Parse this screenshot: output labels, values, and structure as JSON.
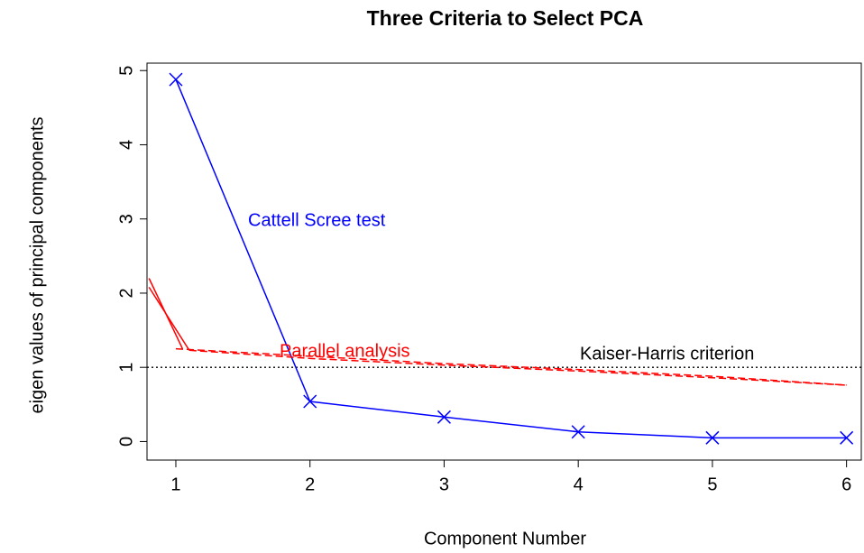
{
  "chart_data": {
    "type": "line",
    "title": "Three Criteria to Select PCA",
    "xlabel": "Component Number",
    "ylabel": "eigen values of principal components",
    "xlim": [
      0.785,
      6.11
    ],
    "ylim": [
      -0.25,
      5.1
    ],
    "xticks": [
      1,
      2,
      3,
      4,
      5,
      6
    ],
    "yticks": [
      0,
      1,
      2,
      3,
      4,
      5
    ],
    "series": [
      {
        "color": "#0000ff",
        "style": "solid",
        "marker": "x",
        "x": [
          1,
          2,
          3,
          4,
          5,
          6
        ],
        "values": [
          4.88,
          0.54,
          0.33,
          0.13,
          0.05,
          0.05
        ]
      },
      {
        "color": "#ff0000",
        "style": "dashed",
        "x": [
          1,
          2,
          3,
          4,
          5,
          6
        ],
        "values": [
          1.25,
          1.15,
          1.05,
          0.97,
          0.88,
          0.76
        ]
      },
      {
        "color": "#ff0000",
        "style": "dashed",
        "x": [
          1.1,
          2,
          3,
          4,
          5,
          6
        ],
        "values": [
          1.23,
          1.12,
          1.03,
          0.95,
          0.86,
          0.76
        ]
      },
      {
        "color": "#ff0000",
        "style": "solid",
        "x": [
          0.8,
          1.05
        ],
        "values": [
          2.2,
          1.25
        ]
      },
      {
        "color": "#ff0000",
        "style": "solid",
        "x": [
          0.8,
          1.1
        ],
        "values": [
          2.08,
          1.23
        ]
      }
    ],
    "hline": {
      "value": 1,
      "color": "#000000",
      "style": "dotted"
    },
    "annotations": [
      {
        "text": "Cattell Scree test",
        "color": "#0000ff"
      },
      {
        "text": "Parallel analysis",
        "color": "#ff0000"
      },
      {
        "text": "Kaiser-Harris criterion",
        "color": "#000000"
      }
    ]
  }
}
